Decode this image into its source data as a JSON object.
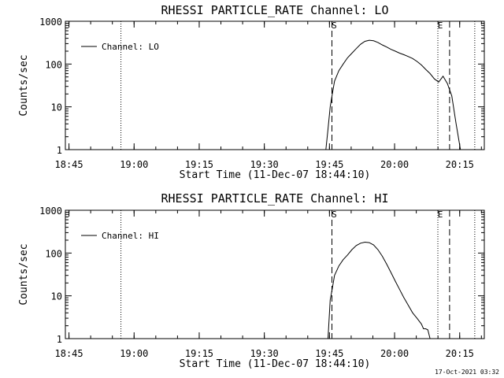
{
  "footer": {
    "timestamp": "17-Oct-2021 03:32"
  },
  "chart_data": [
    {
      "type": "line",
      "title": "RHESSI PARTICLE_RATE Channel: LO",
      "xlabel": "Start Time (11-Dec-07 18:44:10)",
      "ylabel": "Counts/sec",
      "y_scale": "log",
      "ylim": [
        1,
        1000
      ],
      "xlim_minutes_after_start": [
        0,
        96.5
      ],
      "x_tick_labels": [
        "18:45",
        "19:00",
        "19:15",
        "19:30",
        "19:45",
        "20:00",
        "20:15"
      ],
      "x_tick_minutes": [
        0.83,
        15.83,
        30.83,
        45.83,
        60.83,
        75.83,
        90.83
      ],
      "y_tick_labels": [
        "1",
        "10",
        "100",
        "1000"
      ],
      "y_tick_values": [
        1,
        10,
        100,
        1000
      ],
      "legend": {
        "placement": "top-left",
        "entries": [
          "Channel: LO"
        ]
      },
      "markers": {
        "dotted_lines_minutes": [
          12.8,
          85.8,
          94.3
        ],
        "dashed_lines_minutes": [
          61.4,
          88.5
        ],
        "labels": [
          {
            "text": "S",
            "minute": 61.4
          },
          {
            "text": "E",
            "minute": 85.8
          }
        ]
      },
      "series": [
        {
          "name": "Channel: LO",
          "x": [
            60.0,
            60.5,
            61.0,
            61.5,
            62.0,
            63.0,
            64.0,
            65.0,
            66.0,
            67.0,
            68.0,
            69.0,
            70.0,
            71.0,
            72.0,
            73.0,
            74.0,
            75.0,
            76.0,
            77.0,
            78.0,
            79.0,
            80.0,
            81.0,
            82.0,
            83.0,
            84.0,
            85.0,
            86.0,
            87.0,
            88.0,
            89.0,
            90.0,
            91.0
          ],
          "y": [
            1,
            3,
            10,
            20,
            40,
            70,
            100,
            140,
            180,
            230,
            290,
            340,
            360,
            350,
            320,
            280,
            250,
            220,
            200,
            180,
            165,
            150,
            135,
            115,
            95,
            75,
            60,
            45,
            38,
            52,
            35,
            18,
            4,
            1
          ]
        }
      ]
    },
    {
      "type": "line",
      "title": "RHESSI PARTICLE_RATE Channel: HI",
      "xlabel": "Start Time (11-Dec-07 18:44:10)",
      "ylabel": "Counts/sec",
      "y_scale": "log",
      "ylim": [
        1,
        1000
      ],
      "xlim_minutes_after_start": [
        0,
        96.5
      ],
      "x_tick_labels": [
        "18:45",
        "19:00",
        "19:15",
        "19:30",
        "19:45",
        "20:00",
        "20:15"
      ],
      "x_tick_minutes": [
        0.83,
        15.83,
        30.83,
        45.83,
        60.83,
        75.83,
        90.83
      ],
      "y_tick_labels": [
        "1",
        "10",
        "100",
        "1000"
      ],
      "y_tick_values": [
        1,
        10,
        100,
        1000
      ],
      "legend": {
        "placement": "top-left",
        "entries": [
          "Channel: HI"
        ]
      },
      "markers": {
        "dotted_lines_minutes": [
          12.8,
          85.8,
          94.3
        ],
        "dashed_lines_minutes": [
          61.4,
          88.5
        ],
        "labels": [
          {
            "text": "S",
            "minute": 61.4
          },
          {
            "text": "E",
            "minute": 85.8
          }
        ]
      },
      "series": [
        {
          "name": "Channel: HI",
          "x": [
            60.5,
            61.0,
            61.5,
            62.0,
            63.0,
            64.0,
            65.0,
            66.0,
            67.0,
            68.0,
            69.0,
            70.0,
            71.0,
            72.0,
            73.0,
            74.0,
            75.0,
            76.0,
            77.0,
            78.0,
            79.0,
            80.0,
            81.0,
            82.0,
            82.5,
            83.0,
            83.5,
            84.0
          ],
          "y": [
            1,
            8,
            15,
            30,
            50,
            70,
            90,
            120,
            150,
            170,
            180,
            175,
            155,
            120,
            85,
            55,
            35,
            22,
            14,
            9,
            6,
            4,
            3,
            2.2,
            1.7,
            1.7,
            1.6,
            1
          ]
        }
      ]
    }
  ]
}
